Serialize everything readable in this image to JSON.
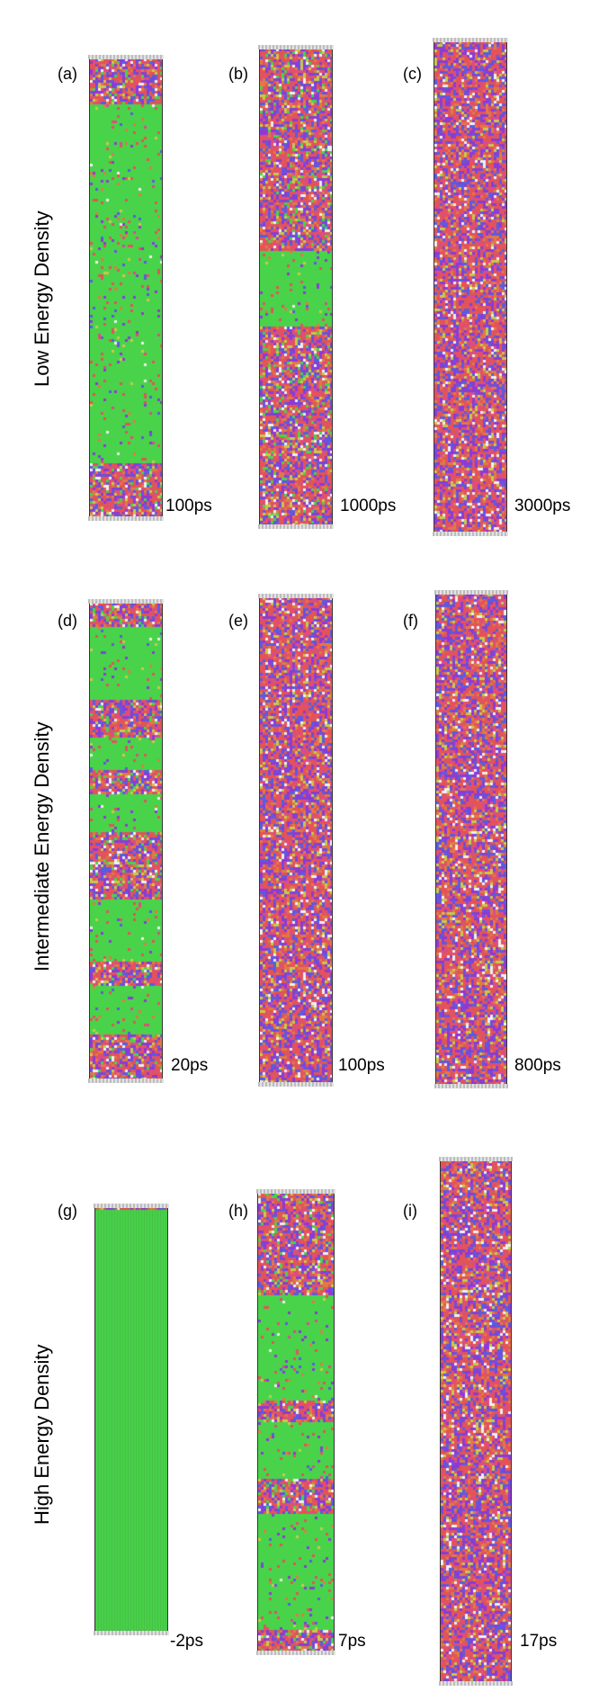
{
  "rows": [
    {
      "label": "Low Energy Density"
    },
    {
      "label": "Intermediate Energy Density"
    },
    {
      "label": "High Energy Density"
    }
  ],
  "panels": [
    {
      "letter": "(a)",
      "time": "100ps",
      "green_fraction": 0.8
    },
    {
      "letter": "(b)",
      "time": "1000ps",
      "green_fraction": 0.15
    },
    {
      "letter": "(c)",
      "time": "3000ps",
      "green_fraction": 0.0
    },
    {
      "letter": "(d)",
      "time": "20ps",
      "green_fraction": 0.45
    },
    {
      "letter": "(e)",
      "time": "100ps",
      "green_fraction": 0.0
    },
    {
      "letter": "(f)",
      "time": "800ps",
      "green_fraction": 0.0
    },
    {
      "letter": "(g)",
      "time": "-2ps",
      "green_fraction": 1.0
    },
    {
      "letter": "(h)",
      "time": "7ps",
      "green_fraction": 0.55
    },
    {
      "letter": "(i)",
      "time": "17ps",
      "green_fraction": 0.0
    }
  ],
  "colors": {
    "crystal": "#49d34a",
    "disordered": [
      "#e2535a",
      "#8a3bd6",
      "#5b5be0",
      "#e07a45",
      "#c9c94a",
      "#f0f0f0",
      "#d94c8c"
    ]
  }
}
